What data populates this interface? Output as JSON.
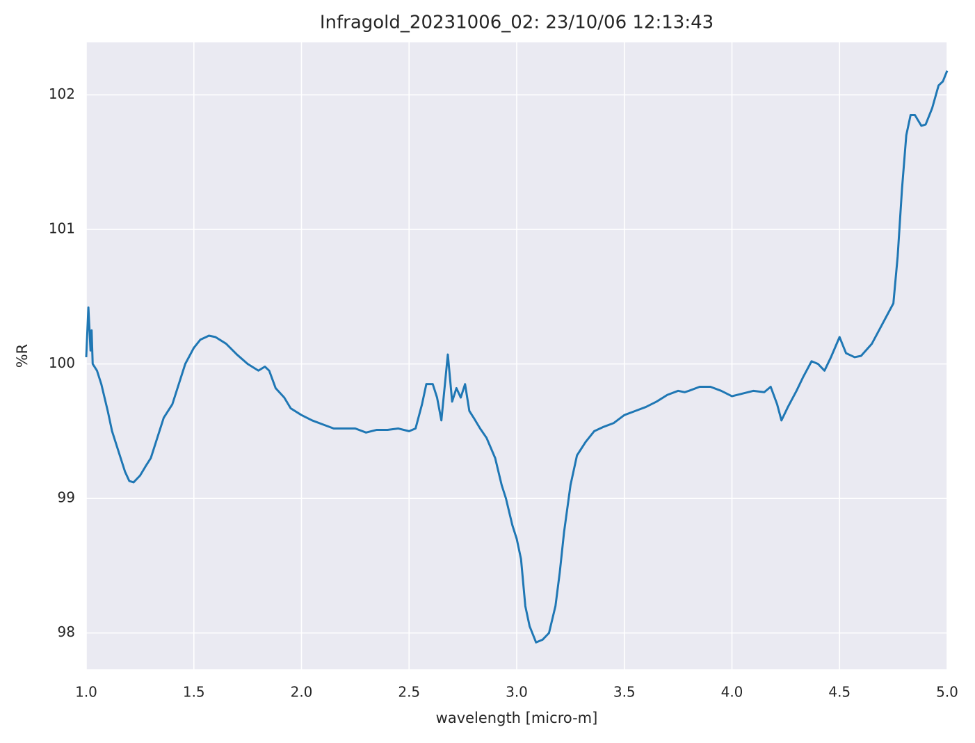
{
  "chart_data": {
    "type": "line",
    "title": "Infragold_20231006_02:  23/10/06 12:13:43",
    "x_label": "wavelength [micro-m]",
    "y_label": "%R",
    "xlim": [
      1.0,
      5.0
    ],
    "ylim": [
      97.73,
      102.39
    ],
    "xticks": [
      {
        "value": 1.0,
        "label": "1.0"
      },
      {
        "value": 1.5,
        "label": "1.5"
      },
      {
        "value": 2.0,
        "label": "2.0"
      },
      {
        "value": 2.5,
        "label": "2.5"
      },
      {
        "value": 3.0,
        "label": "3.0"
      },
      {
        "value": 3.5,
        "label": "3.5"
      },
      {
        "value": 4.0,
        "label": "4.0"
      },
      {
        "value": 4.5,
        "label": "4.5"
      },
      {
        "value": 5.0,
        "label": "5.0"
      }
    ],
    "yticks": [
      98,
      99,
      100,
      101,
      102
    ],
    "grid": true,
    "background": "#eaeaf2",
    "x": [
      1.0,
      1.01,
      1.02,
      1.025,
      1.03,
      1.05,
      1.07,
      1.1,
      1.12,
      1.15,
      1.18,
      1.2,
      1.22,
      1.25,
      1.28,
      1.3,
      1.33,
      1.36,
      1.4,
      1.43,
      1.46,
      1.5,
      1.53,
      1.57,
      1.6,
      1.65,
      1.7,
      1.75,
      1.8,
      1.83,
      1.85,
      1.88,
      1.92,
      1.95,
      2.0,
      2.05,
      2.1,
      2.15,
      2.2,
      2.25,
      2.3,
      2.35,
      2.4,
      2.45,
      2.5,
      2.53,
      2.56,
      2.58,
      2.61,
      2.63,
      2.65,
      2.68,
      2.7,
      2.72,
      2.74,
      2.76,
      2.78,
      2.8,
      2.83,
      2.86,
      2.9,
      2.93,
      2.95,
      2.98,
      3.0,
      3.02,
      3.04,
      3.06,
      3.09,
      3.12,
      3.15,
      3.18,
      3.2,
      3.22,
      3.25,
      3.28,
      3.32,
      3.36,
      3.4,
      3.45,
      3.5,
      3.55,
      3.6,
      3.65,
      3.7,
      3.75,
      3.78,
      3.8,
      3.85,
      3.9,
      3.95,
      4.0,
      4.05,
      4.1,
      4.15,
      4.18,
      4.21,
      4.23,
      4.26,
      4.3,
      4.33,
      4.37,
      4.4,
      4.43,
      4.46,
      4.5,
      4.53,
      4.57,
      4.6,
      4.65,
      4.7,
      4.75,
      4.77,
      4.79,
      4.81,
      4.83,
      4.85,
      4.88,
      4.9,
      4.93,
      4.96,
      4.98,
      5.0
    ],
    "series": [
      {
        "name": "%R",
        "color": "#1f77b4",
        "values": [
          100.05,
          100.42,
          100.1,
          100.25,
          100.0,
          99.95,
          99.85,
          99.65,
          99.5,
          99.35,
          99.2,
          99.13,
          99.12,
          99.17,
          99.25,
          99.3,
          99.45,
          99.6,
          99.7,
          99.85,
          100.0,
          100.12,
          100.18,
          100.21,
          100.2,
          100.15,
          100.07,
          100.0,
          99.95,
          99.98,
          99.95,
          99.82,
          99.75,
          99.67,
          99.62,
          99.58,
          99.55,
          99.52,
          99.52,
          99.52,
          99.49,
          99.51,
          99.51,
          99.52,
          99.5,
          99.52,
          99.7,
          99.85,
          99.85,
          99.75,
          99.58,
          100.07,
          99.72,
          99.82,
          99.75,
          99.85,
          99.65,
          99.6,
          99.52,
          99.45,
          99.3,
          99.1,
          99.0,
          98.8,
          98.7,
          98.55,
          98.2,
          98.05,
          97.93,
          97.95,
          98.0,
          98.2,
          98.45,
          98.75,
          99.1,
          99.32,
          99.42,
          99.5,
          99.53,
          99.56,
          99.62,
          99.65,
          99.68,
          99.72,
          99.77,
          99.8,
          99.79,
          99.8,
          99.83,
          99.83,
          99.8,
          99.76,
          99.78,
          99.8,
          99.79,
          99.83,
          99.7,
          99.58,
          99.68,
          99.8,
          99.9,
          100.02,
          100.0,
          99.95,
          100.05,
          100.2,
          100.08,
          100.05,
          100.06,
          100.15,
          100.3,
          100.45,
          100.8,
          101.3,
          101.7,
          101.85,
          101.85,
          101.77,
          101.78,
          101.9,
          102.07,
          102.1,
          102.18
        ]
      }
    ]
  }
}
